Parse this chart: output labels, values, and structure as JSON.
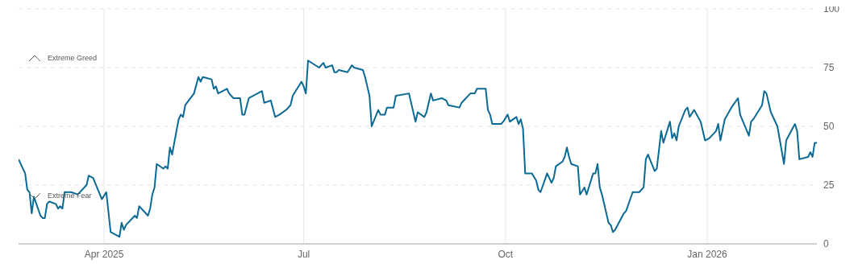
{
  "chart_data": {
    "type": "line",
    "annotations": [
      "Extreme Greed",
      "Extreme Fear"
    ],
    "x": [
      "2025-02-21",
      "2025-02-24",
      "2025-02-25",
      "2025-02-26",
      "2025-02-27",
      "2025-02-28",
      "2025-03-03",
      "2025-03-04",
      "2025-03-05",
      "2025-03-06",
      "2025-03-07",
      "2025-03-10",
      "2025-03-11",
      "2025-03-12",
      "2025-03-13",
      "2025-03-14",
      "2025-03-17",
      "2025-03-20",
      "2025-03-24",
      "2025-03-25",
      "2025-03-27",
      "2025-03-31",
      "2025-04-02",
      "2025-04-04",
      "2025-04-08",
      "2025-04-09",
      "2025-04-10",
      "2025-04-11",
      "2025-04-15",
      "2025-04-16",
      "2025-04-17",
      "2025-04-21",
      "2025-04-22",
      "2025-04-23",
      "2025-04-24",
      "2025-04-25",
      "2025-04-28",
      "2025-04-29",
      "2025-04-30",
      "2025-05-01",
      "2025-05-02",
      "2025-05-05",
      "2025-05-06",
      "2025-05-07",
      "2025-05-08",
      "2025-05-12",
      "2025-05-14",
      "2025-05-15",
      "2025-05-16",
      "2025-05-20",
      "2025-05-21",
      "2025-05-22",
      "2025-05-23",
      "2025-05-27",
      "2025-05-28",
      "2025-05-30",
      "2025-06-02",
      "2025-06-03",
      "2025-06-04",
      "2025-06-06",
      "2025-06-12",
      "2025-06-13",
      "2025-06-16",
      "2025-06-18",
      "2025-06-20",
      "2025-06-23",
      "2025-06-25",
      "2025-06-26",
      "2025-06-30",
      "2025-07-01",
      "2025-07-02",
      "2025-07-03",
      "2025-07-08",
      "2025-07-10",
      "2025-07-11",
      "2025-07-14",
      "2025-07-15",
      "2025-07-16",
      "2025-07-17",
      "2025-07-21",
      "2025-07-23",
      "2025-07-24",
      "2025-07-28",
      "2025-07-29",
      "2025-07-30",
      "2025-07-31",
      "2025-08-01",
      "2025-08-04",
      "2025-08-05",
      "2025-08-06",
      "2025-08-07",
      "2025-08-08",
      "2025-08-11",
      "2025-08-12",
      "2025-08-18",
      "2025-08-21",
      "2025-08-22",
      "2025-08-25",
      "2025-08-26",
      "2025-08-28",
      "2025-08-29",
      "2025-09-02",
      "2025-09-04",
      "2025-09-05",
      "2025-09-10",
      "2025-09-11",
      "2025-09-15",
      "2025-09-17",
      "2025-09-18",
      "2025-09-22",
      "2025-09-23",
      "2025-09-24",
      "2025-09-25",
      "2025-09-26",
      "2025-09-29",
      "2025-09-30",
      "2025-10-02",
      "2025-10-03",
      "2025-10-06",
      "2025-10-07",
      "2025-10-08",
      "2025-10-09",
      "2025-10-10",
      "2025-10-13",
      "2025-10-15",
      "2025-10-16",
      "2025-10-17",
      "2025-10-20",
      "2025-10-22",
      "2025-10-23",
      "2025-10-24",
      "2025-10-27",
      "2025-10-28",
      "2025-10-29",
      "2025-10-30",
      "2025-10-31",
      "2025-11-03",
      "2025-11-04",
      "2025-11-06",
      "2025-11-07",
      "2025-11-10",
      "2025-11-11",
      "2025-11-12",
      "2025-11-13",
      "2025-11-14",
      "2025-11-17",
      "2025-11-18",
      "2025-11-19",
      "2025-11-20",
      "2025-11-24",
      "2025-11-25",
      "2025-11-28",
      "2025-12-01",
      "2025-12-03",
      "2025-12-04",
      "2025-12-05",
      "2025-12-08",
      "2025-12-09",
      "2025-12-11",
      "2025-12-12",
      "2025-12-15",
      "2025-12-16",
      "2025-12-17",
      "2025-12-18",
      "2025-12-19",
      "2025-12-22",
      "2025-12-23",
      "2025-12-24",
      "2025-12-26",
      "2025-12-29",
      "2025-12-30",
      "2025-12-31",
      "2026-01-02",
      "2026-01-05",
      "2026-01-06",
      "2026-01-07",
      "2026-01-09",
      "2026-01-12",
      "2026-01-15",
      "2026-01-16",
      "2026-01-20",
      "2026-01-21",
      "2026-01-22",
      "2026-01-26",
      "2026-01-27",
      "2026-01-28",
      "2026-01-30",
      "2026-02-02",
      "2026-02-05",
      "2026-02-06",
      "2026-02-10",
      "2026-02-11",
      "2026-02-12",
      "2026-02-16",
      "2026-02-17",
      "2026-02-18",
      "2026-02-19",
      "2026-02-20"
    ],
    "series": [
      {
        "color": "#0b6a94",
        "values": [
          36,
          30,
          23,
          22,
          13,
          20,
          12,
          11,
          11,
          17,
          18,
          17,
          15,
          16,
          15,
          22,
          22,
          21,
          25,
          29,
          28,
          19,
          22,
          5,
          3,
          9,
          6,
          8,
          12,
          11,
          16,
          12,
          15,
          21,
          24,
          34,
          32,
          33,
          32,
          41,
          38,
          53,
          55,
          54,
          59,
          64,
          71,
          69,
          71,
          70,
          66,
          67,
          64,
          66,
          64,
          62,
          62,
          55,
          55,
          62,
          65,
          60,
          61,
          54,
          55,
          57,
          59,
          63,
          69,
          67,
          64,
          78,
          75,
          77,
          75,
          76,
          73,
          73,
          74,
          73,
          76,
          75,
          74,
          71,
          67,
          63,
          50,
          57,
          55,
          55,
          55,
          58,
          58,
          63,
          64,
          52,
          56,
          54,
          56,
          64,
          61,
          62,
          61,
          59,
          58,
          60,
          64,
          64,
          66,
          66,
          57,
          55,
          51,
          51,
          51,
          52,
          55,
          52,
          54,
          51,
          53,
          49,
          30,
          30,
          27,
          23,
          22,
          30,
          26,
          28,
          33,
          35,
          37,
          41,
          37,
          34,
          33,
          21,
          24,
          21,
          30,
          30,
          34,
          24,
          21,
          9,
          8,
          5,
          6,
          13,
          14,
          22,
          22,
          24,
          36,
          38,
          31,
          32,
          48,
          43,
          52,
          45,
          47,
          44,
          50,
          57,
          58,
          54,
          57,
          52,
          48,
          44,
          45,
          48,
          51,
          44,
          53,
          58,
          62,
          55,
          46,
          52,
          53,
          59,
          65,
          64,
          56,
          50,
          34,
          44,
          51,
          48,
          36,
          37,
          39,
          37,
          43,
          43
        ]
      }
    ],
    "xlim": [
      "2025-02-21",
      "2026-02-20"
    ],
    "xticks": [
      {
        "value": "2025-04-01",
        "label": "Apr 2025"
      },
      {
        "value": "2025-07-01",
        "label": "Jul"
      },
      {
        "value": "2025-10-01",
        "label": "Oct"
      },
      {
        "value": "2026-01-01",
        "label": "Jan 2026"
      }
    ],
    "ylim": [
      0,
      100
    ],
    "yticks": [
      0,
      25,
      50,
      75,
      100
    ],
    "grid": true,
    "line_style": "solid",
    "marker": "none"
  }
}
